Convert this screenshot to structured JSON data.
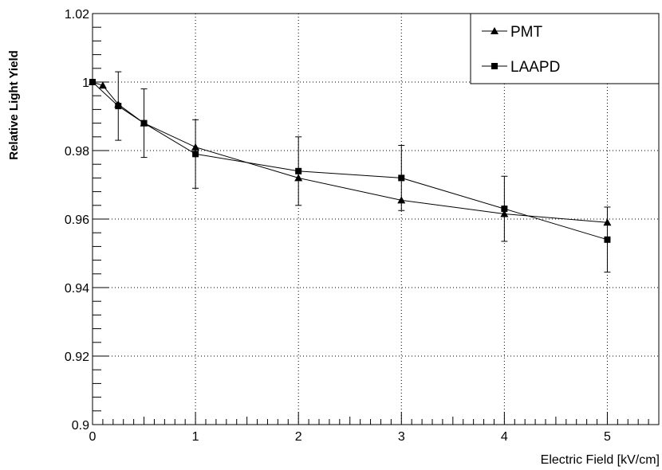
{
  "chart_data": {
    "type": "line",
    "title": "",
    "xlabel": "Electric Field [kV/cm]",
    "ylabel": "Relative Light Yield",
    "xlim": [
      0,
      5.5
    ],
    "ylim": [
      0.9,
      1.02
    ],
    "xticks": [
      0,
      1,
      2,
      3,
      4,
      5
    ],
    "xtick_labels": [
      "0",
      "1",
      "2",
      "3",
      "4",
      "5"
    ],
    "yticks": [
      0.9,
      0.92,
      0.94,
      0.96,
      0.98,
      1.0,
      1.02
    ],
    "ytick_labels": [
      "0.9",
      "0.92",
      "0.94",
      "0.96",
      "0.98",
      "1",
      "1.02"
    ],
    "grid": true,
    "legend_position": "top-right",
    "series": [
      {
        "name": "PMT",
        "marker": "triangle",
        "x": [
          0,
          0.1,
          0.25,
          0.5,
          1,
          2,
          3,
          4,
          5
        ],
        "y": [
          1.0,
          0.999,
          0.9935,
          0.988,
          0.981,
          0.972,
          0.9655,
          0.9615,
          0.959
        ],
        "yerr": [
          0,
          0,
          0,
          0,
          0,
          0,
          0,
          0,
          0
        ]
      },
      {
        "name": "LAAPD",
        "marker": "square",
        "x": [
          0,
          0.25,
          0.5,
          1,
          2,
          3,
          4,
          5
        ],
        "y": [
          1.0,
          0.993,
          0.988,
          0.979,
          0.974,
          0.972,
          0.963,
          0.954
        ],
        "yerr": [
          0,
          0.01,
          0.01,
          0.01,
          0.01,
          0.0095,
          0.0095,
          0.0095
        ]
      }
    ],
    "colors": {
      "line": "#000000",
      "grid": "#000000",
      "background": "#ffffff"
    }
  }
}
